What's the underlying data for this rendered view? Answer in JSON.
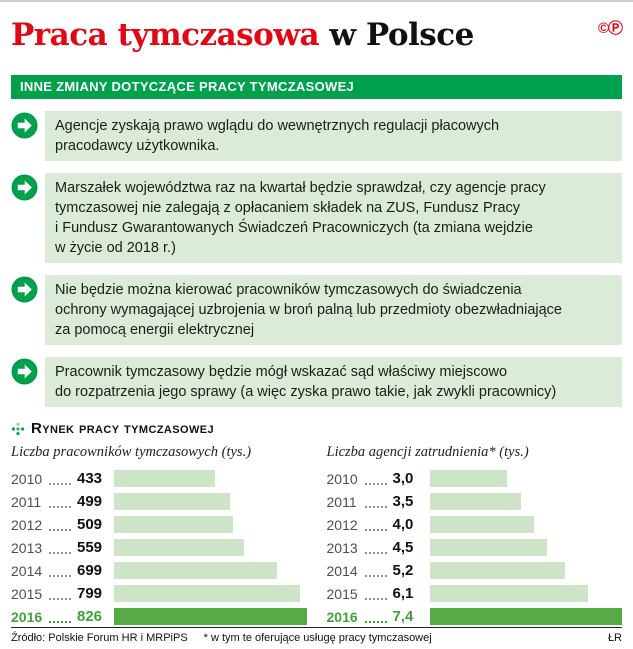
{
  "page": {
    "title_red": "Praca tymczasowa",
    "title_black": "w Polsce",
    "logo": "©Ⓟ",
    "banner": "INNE ZMIANY DOTYCZĄCE PRACY TYMCZASOWEJ",
    "section_title": "Rynek pracy tymczasowej"
  },
  "bullets": [
    {
      "text": "Agencje zyskają prawo wglądu do wewnętrznych regulacji płacowych\npracodawcy użytkownika."
    },
    {
      "text": "Marszałek województwa raz na kwartał będzie sprawdzał, czy agencje pracy\ntymczasowej nie zalegają z opłacaniem składek na ZUS, Fundusz Pracy\ni Fundusz Gwarantowanych Świadczeń Pracowniczych (ta zmiana wejdzie\nw życie od 2018 r.)"
    },
    {
      "text": "Nie będzie można kierować pracowników tymczasowych do świadczenia\nochrony wymagającej uzbrojenia w broń palną lub przedmioty obezwładniające\nza pomocą energii elektrycznej"
    },
    {
      "text": "Pracownik tymczasowy będzie mógł wskazać sąd właściwy miejscowo\ndo rozpatrzenia jego sprawy (a więc zyska prawo takie, jak zwykli pracownicy)"
    }
  ],
  "chart_data": [
    {
      "type": "bar",
      "orientation": "horizontal",
      "title": "Liczba pracowników tymczasowych (tys.)",
      "categories": [
        "2010",
        "2011",
        "2012",
        "2013",
        "2014",
        "2015",
        "2016"
      ],
      "values": [
        433,
        499,
        509,
        559,
        699,
        799,
        826
      ],
      "value_labels": [
        "433",
        "499",
        "509",
        "559",
        "699",
        "799",
        "826"
      ],
      "highlight_category": "2016",
      "xlim": [
        0,
        826
      ]
    },
    {
      "type": "bar",
      "orientation": "horizontal",
      "title": "Liczba agencji zatrudnienia* (tys.)",
      "categories": [
        "2010",
        "2011",
        "2012",
        "2013",
        "2014",
        "2015",
        "2016"
      ],
      "values": [
        3.0,
        3.5,
        4.0,
        4.5,
        5.2,
        6.1,
        7.4
      ],
      "value_labels": [
        "3,0",
        "3,5",
        "4,0",
        "4,5",
        "5,2",
        "6,1",
        "7,4"
      ],
      "highlight_category": "2016",
      "xlim": [
        0,
        7.4
      ]
    }
  ],
  "footer": {
    "source": "Źródło: Polskie Forum HR i MRPiPS",
    "note": "* w tym te oferujące usługę pracy tymczasowej",
    "initials": "ŁR"
  },
  "colors": {
    "red": "#e30613",
    "green": "#00a14d",
    "light_green": "#dcebd8",
    "bar_light": "#cde4c6",
    "bar_highlight": "#57ab47",
    "highlight_text": "#3fa339"
  }
}
